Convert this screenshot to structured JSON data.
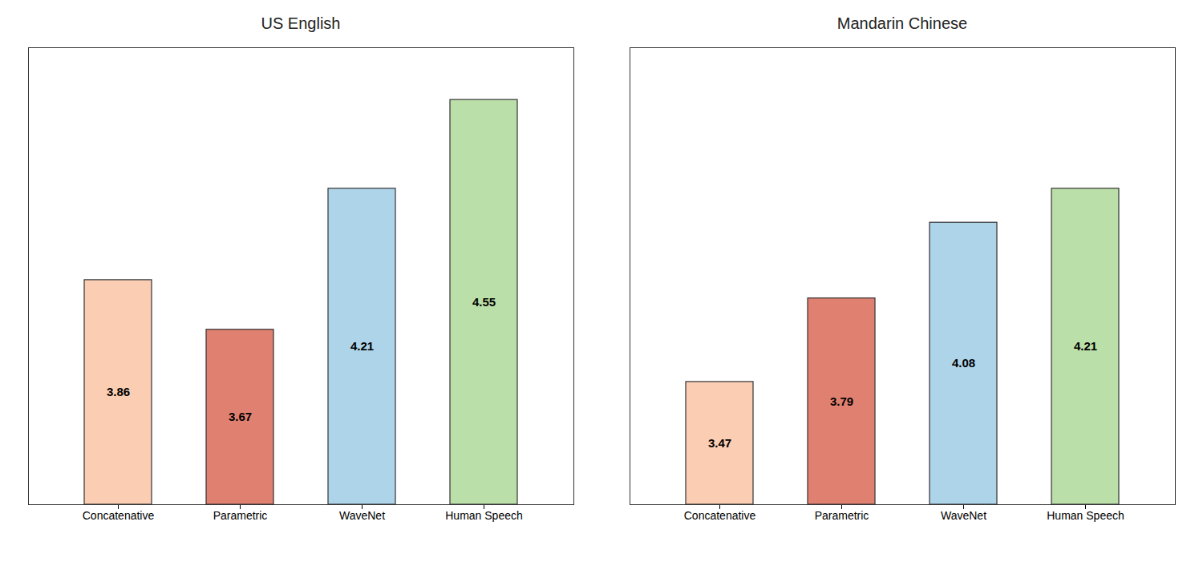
{
  "chart_data": [
    {
      "type": "bar",
      "title": "US English",
      "categories": [
        "Concatenative",
        "Parametric",
        "WaveNet",
        "Human Speech"
      ],
      "values": [
        3.86,
        3.67,
        4.21,
        4.55
      ],
      "colors": [
        "#FBCDB3",
        "#E08070",
        "#AED4EA",
        "#BBDFA8"
      ],
      "ylim": [
        3.0,
        4.75
      ],
      "data_labels": true,
      "tick_labels": "x",
      "grid": false
    },
    {
      "type": "bar",
      "title": "Mandarin Chinese",
      "categories": [
        "Concatenative",
        "Parametric",
        "WaveNet",
        "Human Speech"
      ],
      "values": [
        3.47,
        3.79,
        4.08,
        4.21
      ],
      "colors": [
        "#FBCDB3",
        "#E08070",
        "#AED4EA",
        "#BBDFA8"
      ],
      "ylim": [
        3.0,
        4.75
      ],
      "data_labels": true,
      "tick_labels": "x",
      "grid": false
    }
  ]
}
